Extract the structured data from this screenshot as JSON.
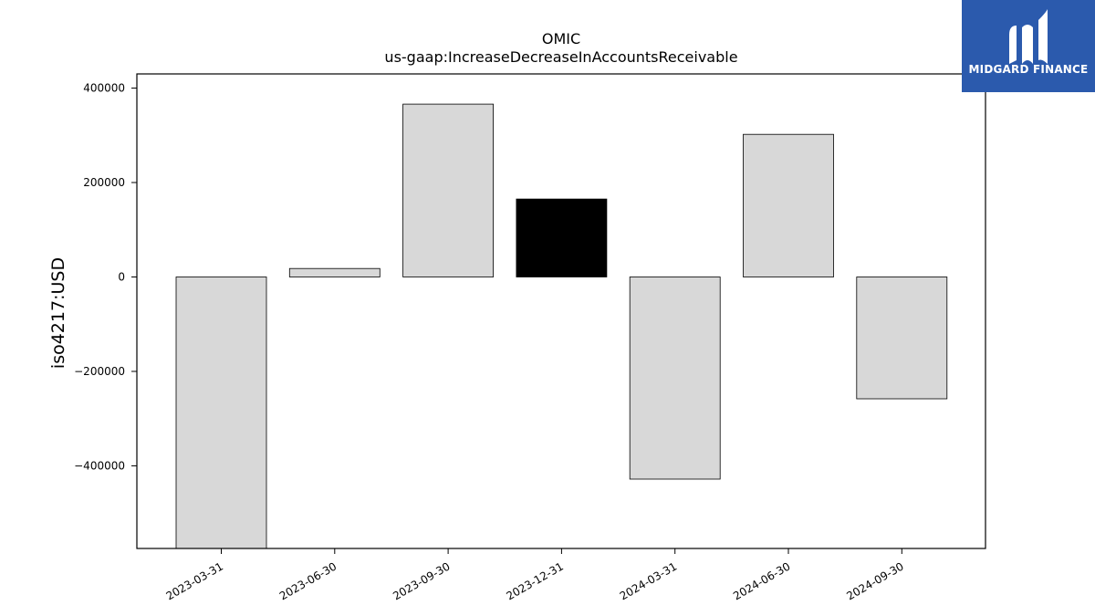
{
  "chart_data": {
    "type": "bar",
    "title": "OMIC",
    "subtitle": "us-gaap:IncreaseDecreaseInAccountsReceivable",
    "ylabel": "iso4217:USD",
    "xlabel": "",
    "categories": [
      "2023-03-31",
      "2023-06-30",
      "2023-09-30",
      "2023-12-31",
      "2024-03-31",
      "2024-06-30",
      "2024-09-30"
    ],
    "values": [
      -575000,
      18000,
      366000,
      165000,
      -428000,
      302000,
      -258000
    ],
    "highlight_index": 3,
    "ylim": [
      -575000,
      430000
    ],
    "yticks": [
      400000,
      200000,
      0,
      -200000,
      -400000
    ],
    "ytick_labels": [
      "400000",
      "200000",
      "0",
      "−200000",
      "−400000"
    ],
    "bar_color": "#d8d8d8",
    "highlight_color": "#000000",
    "edge_color": "#000000",
    "grid": false,
    "legend": "none"
  },
  "logo": {
    "text": "MIDGARD FINANCE",
    "background": "#2b5aad"
  }
}
